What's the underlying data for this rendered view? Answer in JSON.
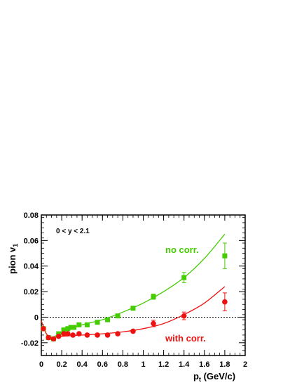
{
  "chart_data": {
    "type": "scatter",
    "title": "",
    "xlabel": {
      "base": "p",
      "sub": "t",
      "rest": " (GeV/c)"
    },
    "ylabel": {
      "base": "pion v",
      "sub": "1"
    },
    "xlim": [
      0,
      2
    ],
    "ylim": [
      -0.03,
      0.08
    ],
    "x_ticks": [
      "0",
      "0.2",
      "0.4",
      "0.6",
      "0.8",
      "1",
      "1.2",
      "1.4",
      "1.6",
      "1.8",
      "2"
    ],
    "y_ticks": [
      "-0.02",
      "0",
      "0.02",
      "0.04",
      "0.06",
      "0.08"
    ],
    "annotation_range": "0 < y < 2.1",
    "zero_line": true,
    "grid": false,
    "series": [
      {
        "name": "no corr.",
        "color": "#44cc00",
        "marker": "square",
        "points": [
          {
            "x": 0.02,
            "y": -0.009
          },
          {
            "x": 0.07,
            "y": -0.016
          },
          {
            "x": 0.12,
            "y": -0.017
          },
          {
            "x": 0.17,
            "y": -0.013
          },
          {
            "x": 0.22,
            "y": -0.01
          },
          {
            "x": 0.26,
            "y": -0.009
          },
          {
            "x": 0.29,
            "y": -0.008
          },
          {
            "x": 0.32,
            "y": -0.008
          },
          {
            "x": 0.37,
            "y": -0.006
          },
          {
            "x": 0.45,
            "y": -0.006
          },
          {
            "x": 0.55,
            "y": -0.004
          },
          {
            "x": 0.65,
            "y": -0.002
          },
          {
            "x": 0.75,
            "y": 0.001
          },
          {
            "x": 0.9,
            "y": 0.007
          },
          {
            "x": 1.1,
            "y": 0.016,
            "err": 0.002
          },
          {
            "x": 1.4,
            "y": 0.031,
            "err": 0.004
          },
          {
            "x": 1.8,
            "y": 0.048,
            "err": 0.01
          }
        ],
        "fit": [
          {
            "x": 0.0,
            "y": -0.003
          },
          {
            "x": 0.05,
            "y": -0.013
          },
          {
            "x": 0.1,
            "y": -0.016
          },
          {
            "x": 0.2,
            "y": -0.012
          },
          {
            "x": 0.4,
            "y": -0.006
          },
          {
            "x": 0.6,
            "y": -0.002
          },
          {
            "x": 0.8,
            "y": 0.004
          },
          {
            "x": 1.0,
            "y": 0.011
          },
          {
            "x": 1.2,
            "y": 0.02
          },
          {
            "x": 1.4,
            "y": 0.031
          },
          {
            "x": 1.6,
            "y": 0.046
          },
          {
            "x": 1.8,
            "y": 0.065
          }
        ]
      },
      {
        "name": "with corr.",
        "color": "#ee1111",
        "marker": "circle",
        "points": [
          {
            "x": 0.02,
            "y": -0.009
          },
          {
            "x": 0.07,
            "y": -0.016
          },
          {
            "x": 0.12,
            "y": -0.017
          },
          {
            "x": 0.17,
            "y": -0.015
          },
          {
            "x": 0.22,
            "y": -0.013
          },
          {
            "x": 0.26,
            "y": -0.013
          },
          {
            "x": 0.31,
            "y": -0.014
          },
          {
            "x": 0.37,
            "y": -0.013
          },
          {
            "x": 0.45,
            "y": -0.014
          },
          {
            "x": 0.55,
            "y": -0.014
          },
          {
            "x": 0.65,
            "y": -0.014
          },
          {
            "x": 0.75,
            "y": -0.013
          },
          {
            "x": 0.9,
            "y": -0.011
          },
          {
            "x": 1.1,
            "y": -0.005,
            "err": 0.0025
          },
          {
            "x": 1.4,
            "y": 0.001,
            "err": 0.003
          },
          {
            "x": 1.8,
            "y": 0.012,
            "err": 0.007
          }
        ],
        "fit": [
          {
            "x": 0.0,
            "y": -0.003
          },
          {
            "x": 0.05,
            "y": -0.013
          },
          {
            "x": 0.1,
            "y": -0.016
          },
          {
            "x": 0.2,
            "y": -0.015
          },
          {
            "x": 0.4,
            "y": -0.014
          },
          {
            "x": 0.6,
            "y": -0.013
          },
          {
            "x": 0.8,
            "y": -0.0115
          },
          {
            "x": 1.0,
            "y": -0.009
          },
          {
            "x": 1.2,
            "y": -0.005
          },
          {
            "x": 1.4,
            "y": 0.002
          },
          {
            "x": 1.6,
            "y": 0.011
          },
          {
            "x": 1.8,
            "y": 0.024
          }
        ]
      }
    ]
  }
}
